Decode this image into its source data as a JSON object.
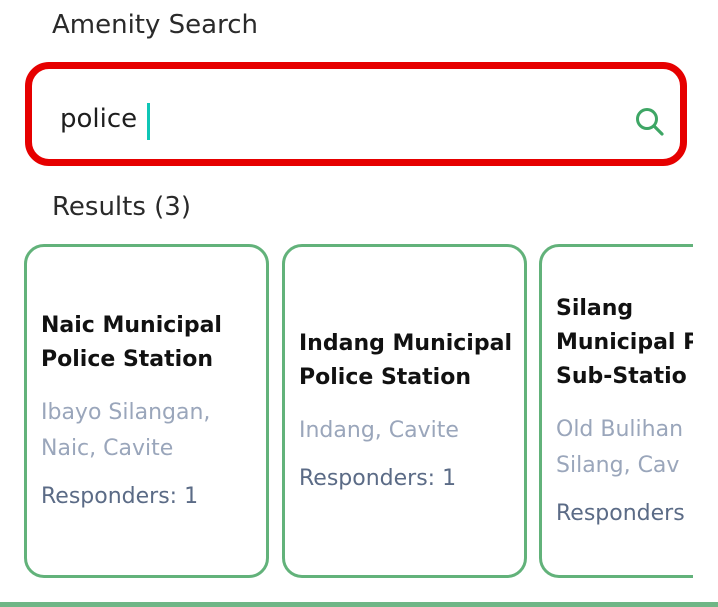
{
  "header": {
    "title": "Amenity Search"
  },
  "search": {
    "value": "police",
    "placeholder": "",
    "icon": "search-icon",
    "highlight_color": "#e60000"
  },
  "results": {
    "label": "Results (3)",
    "items": [
      {
        "name": "Naic Municipal Police Station",
        "address": "Ibayo Silangan, Naic, Cavite",
        "responders": "Responders: 1"
      },
      {
        "name": "Indang Municipal Police Station",
        "address": "Indang, Cavite",
        "responders": "Responders: 1"
      },
      {
        "name_lines": [
          "Silang",
          "Municipal P",
          "Sub-Statio"
        ],
        "address_lines": [
          "Old Bulihan",
          "Silang, Cav"
        ],
        "responders": "Responders"
      }
    ]
  },
  "colors": {
    "accent": "#62b27a",
    "caret": "#0fc6b6",
    "address_text": "#9aa6bb",
    "responders_text": "#5b6b86"
  }
}
